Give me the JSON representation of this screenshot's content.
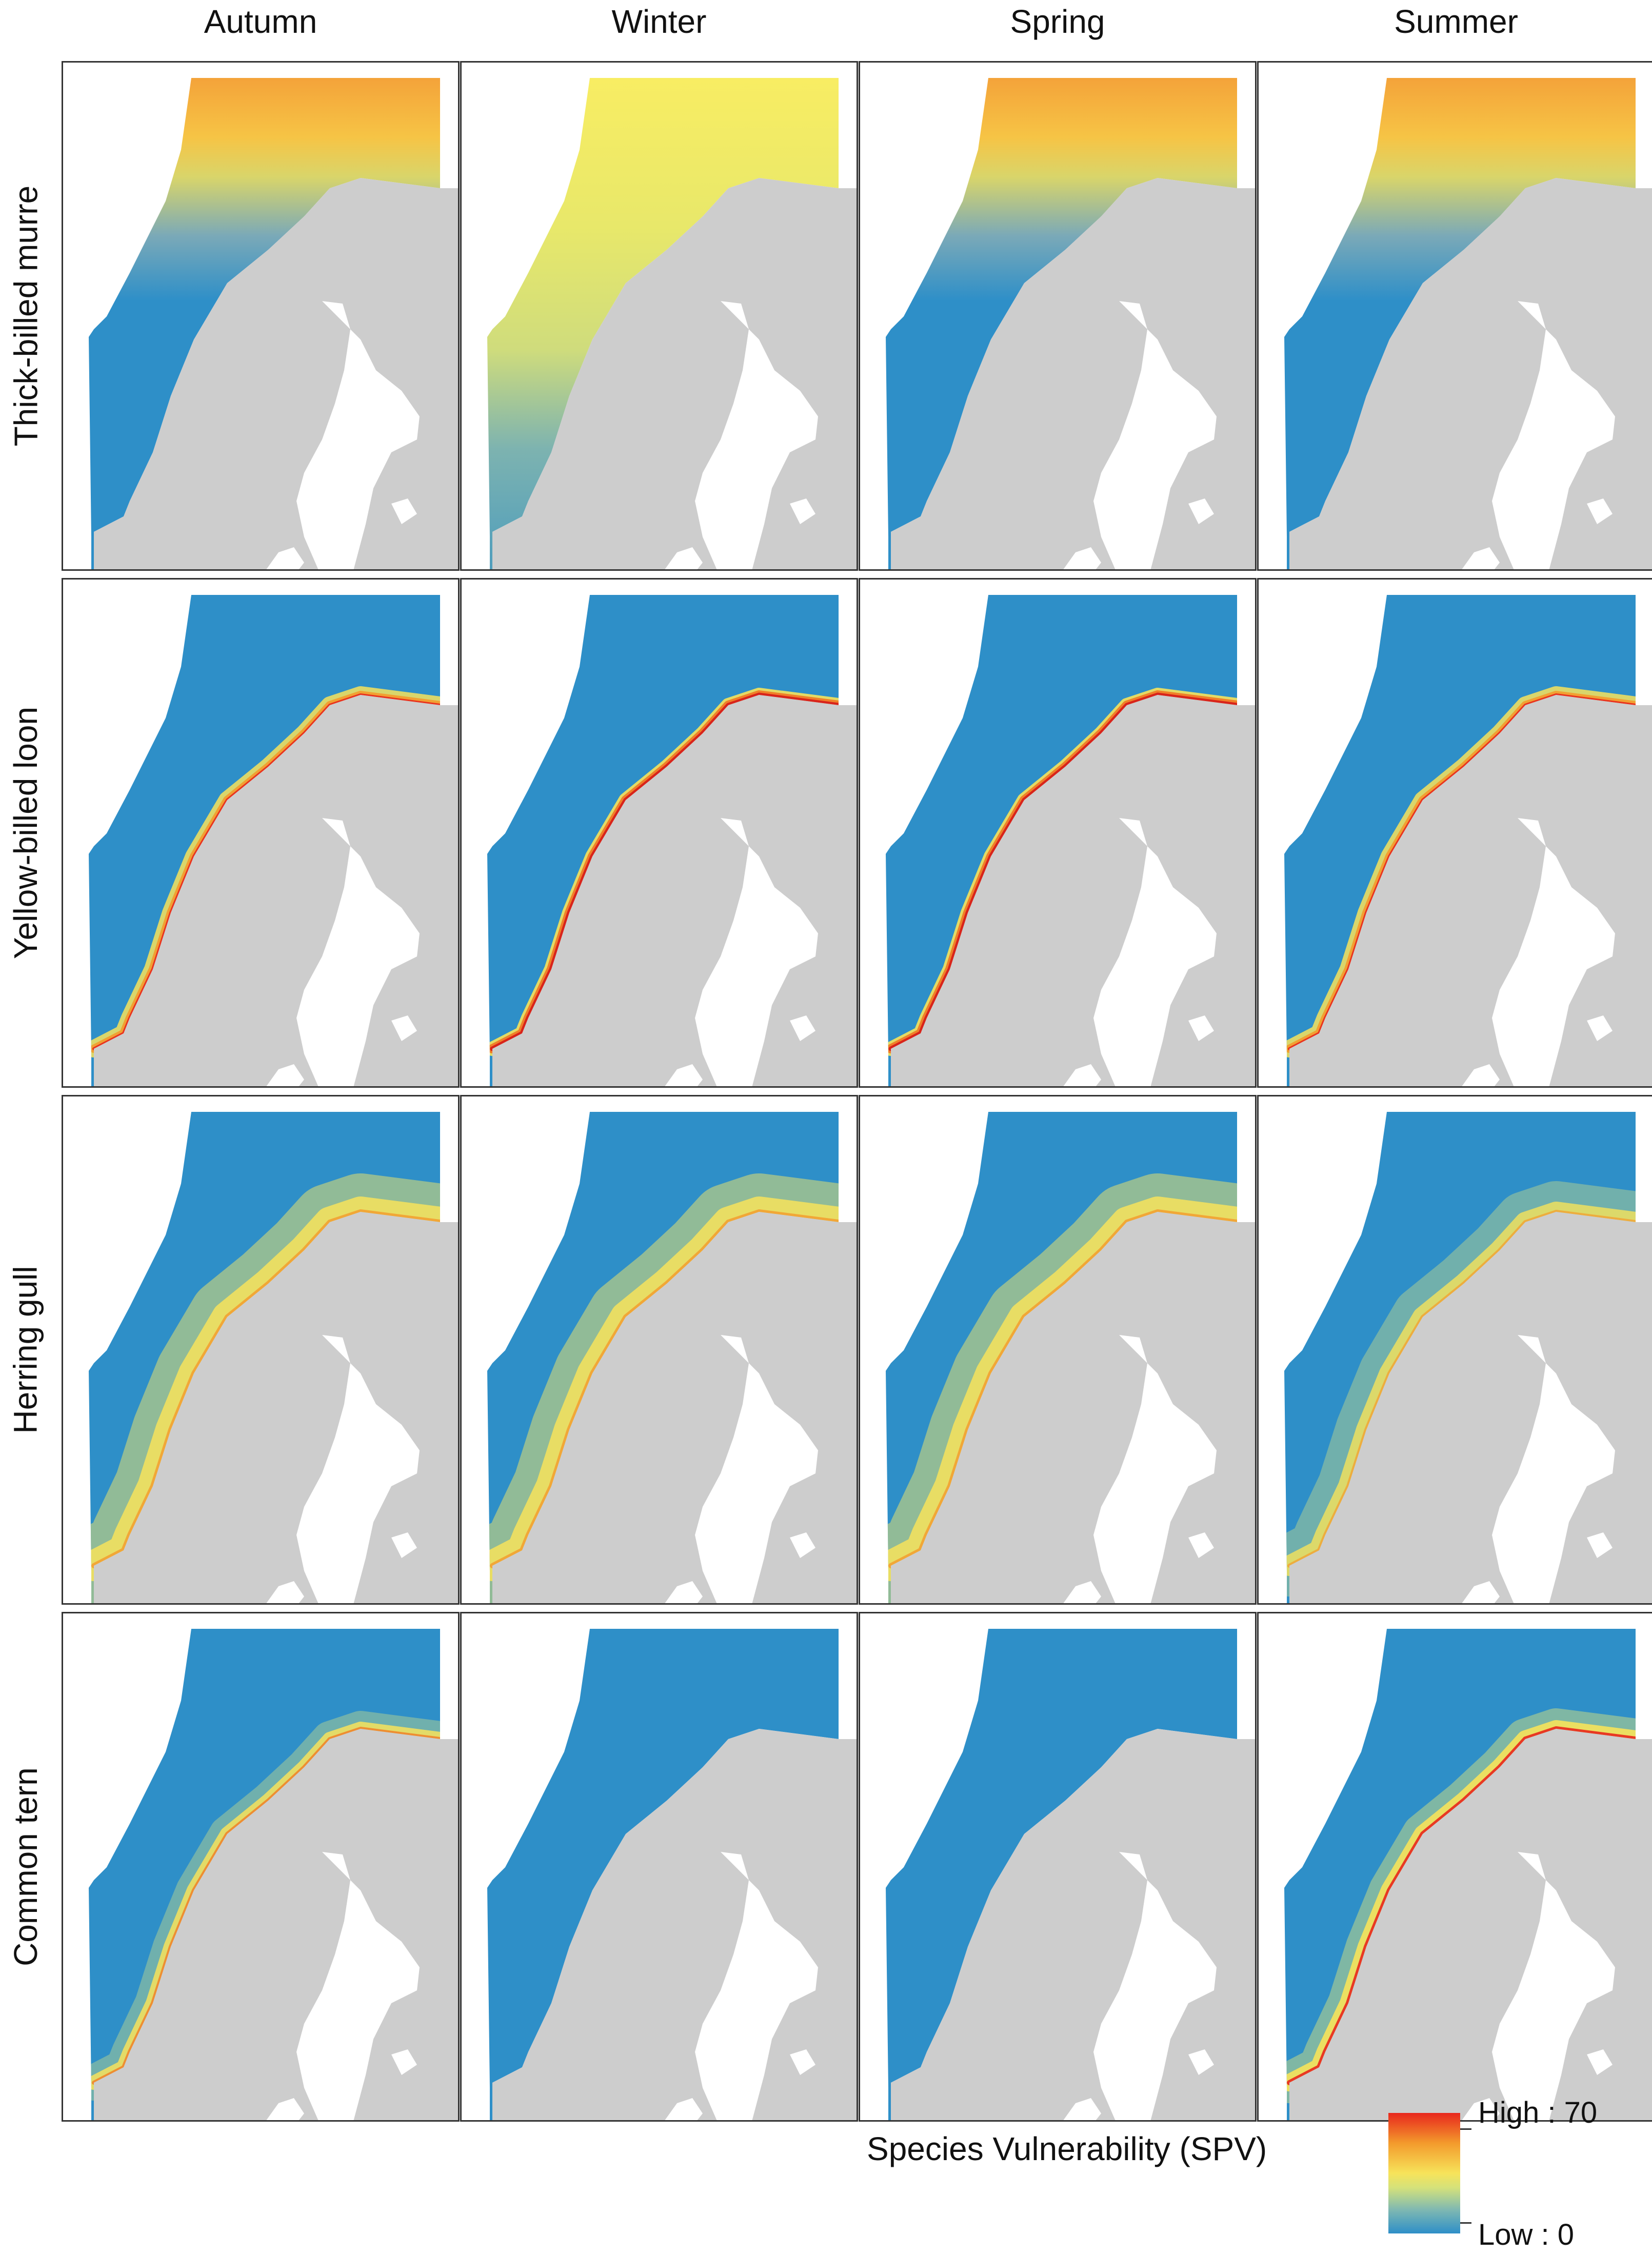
{
  "columns": [
    {
      "label": "Autumn"
    },
    {
      "label": "Winter"
    },
    {
      "label": "Spring"
    },
    {
      "label": "Summer"
    }
  ],
  "rows": [
    {
      "label": "Thick-billed murre"
    },
    {
      "label": "Yellow-billed loon"
    },
    {
      "label": "Herring gull"
    },
    {
      "label": "Common tern"
    }
  ],
  "legend": {
    "title": "Species Vulnerability (SPV)",
    "high_label": "High : 70",
    "low_label": "Low : 0"
  },
  "colors": {
    "land": "#cdcdcd",
    "inland_water": "#ffffff",
    "low": "#2e8fc8",
    "mid": "#f7e35a",
    "high": "#e8271d"
  },
  "panel_patterns": [
    [
      "north-high",
      "uniform-mid",
      "north-high",
      "north-high"
    ],
    [
      "coast-high",
      "coast-very-high",
      "coast-very-high",
      "coast-high"
    ],
    [
      "coast-mid-broad",
      "coast-mid-broad",
      "coast-mid-broad",
      "coast-mid"
    ],
    [
      "coast-mid-south",
      "all-low",
      "all-low",
      "coast-high-south"
    ]
  ]
}
